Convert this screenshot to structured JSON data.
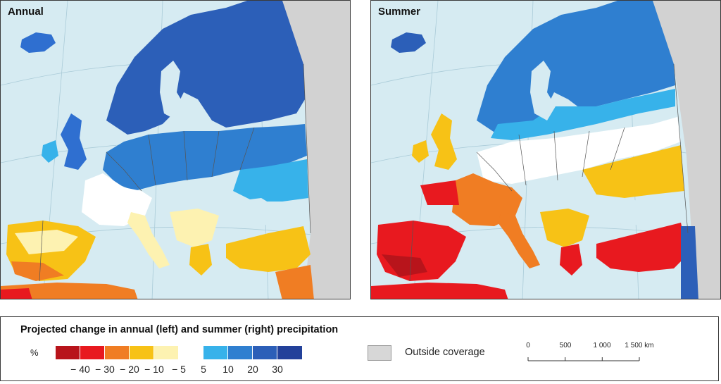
{
  "panels": [
    {
      "title": "Annual"
    },
    {
      "title": "Summer"
    }
  ],
  "legend": {
    "title": "Projected change in annual (left) and summer (right) precipitation",
    "unit": "%",
    "color_classes": [
      "#b8141b",
      "#e8191f",
      "#f07d23",
      "#f7c216",
      "#fdf2b1",
      "#ffffff",
      "#37b2ea",
      "#2f7fd0",
      "#2c5fb8",
      "#23419a"
    ],
    "tick_labels": [
      "− 40",
      "− 30",
      "− 20",
      "− 10",
      "− 5",
      "5",
      "10",
      "20",
      "30"
    ],
    "outside_coverage_label": "Outside coverage",
    "outside_coverage_color": "#d7d7d7"
  },
  "scale_bar": {
    "labels": [
      "0",
      "500",
      "1 000",
      "1 500 km"
    ]
  },
  "colors": {
    "sea": "#d6ebf2",
    "outside": "#d2d2d2",
    "border": "#555555"
  }
}
